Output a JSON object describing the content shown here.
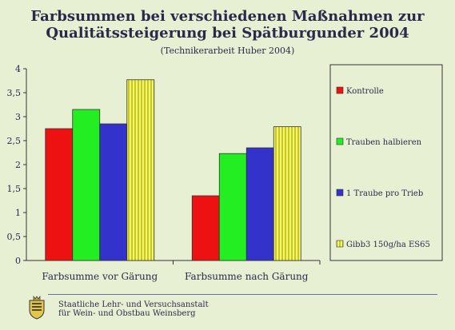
{
  "title_line1": "Farbsummen bei verschiedenen Maßnahmen zur",
  "title_line2": "Qualitätssteigerung bei Spätburgunder 2004",
  "subtitle": "(Technikerarbeit Huber 2004)",
  "footer": {
    "line1": "Staatliche Lehr- und Versuchsanstalt",
    "line2": "für Wein- und Obstbau Weinsberg"
  },
  "chart_data": {
    "type": "bar",
    "categories": [
      "Farbsumme vor Gärung",
      "Farbsumme nach Gärung"
    ],
    "series": [
      {
        "name": "Kontrolle",
        "values": [
          2.75,
          1.35
        ],
        "color": "#ee1111"
      },
      {
        "name": "Trauben halbieren",
        "values": [
          3.15,
          2.23
        ],
        "color": "#22ee22"
      },
      {
        "name": "1 Traube pro Trieb",
        "values": [
          2.85,
          2.35
        ],
        "color": "#3333cc"
      },
      {
        "name": "Gibb3 150g/ha ES65",
        "values": [
          3.77,
          2.79
        ],
        "color": "#eeee44",
        "pattern": "vertical-stripes"
      }
    ],
    "yticks": [
      "0",
      "0,5",
      "1",
      "1,5",
      "2",
      "2,5",
      "3",
      "3,5",
      "4"
    ],
    "ylim": [
      0,
      4
    ],
    "grid": false,
    "legend": "right"
  }
}
